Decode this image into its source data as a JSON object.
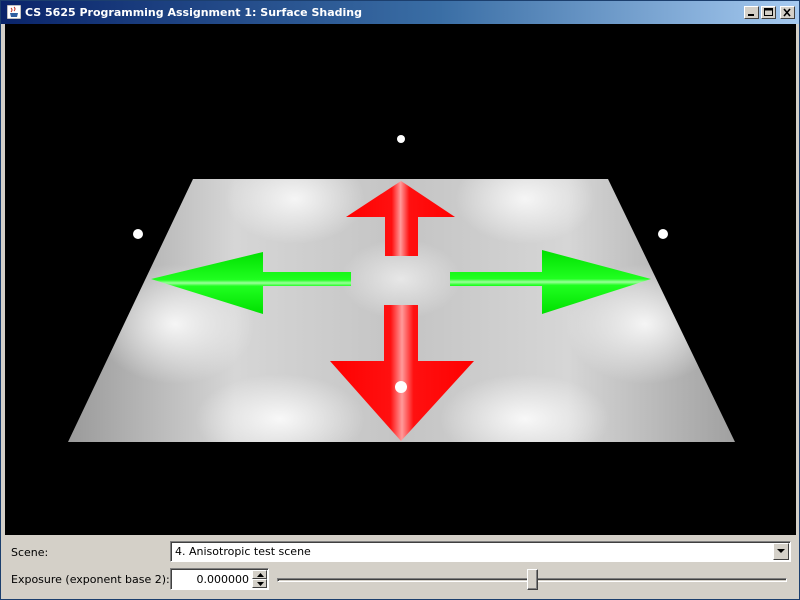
{
  "window": {
    "title": "CS 5625 Programming Assignment 1: Surface Shading",
    "app_icon": "java-cup-icon",
    "buttons": [
      "minimize-icon",
      "maximize-icon",
      "close-icon"
    ]
  },
  "viewport": {
    "background": "#000000",
    "floor_color": "#dcdcdc",
    "up_down_arrow_color": "#ff0000",
    "left_right_arrow_color": "#00e000",
    "light_marker_color": "#ffffff",
    "light_marker_count": 4
  },
  "controls": {
    "scene_label": "Scene:",
    "scene_selected": "4. Anisotropic test scene",
    "exposure_label": "Exposure (exponent base 2):",
    "exposure_value": "0.000000",
    "exposure_slider_fraction": 0.5
  }
}
